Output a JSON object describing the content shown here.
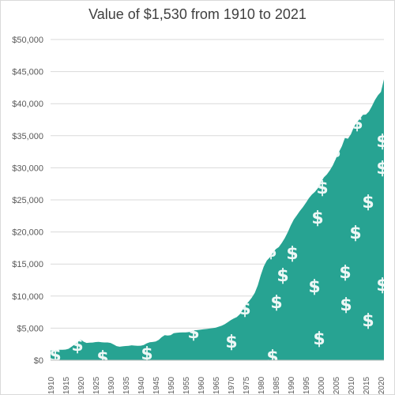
{
  "chart_data": {
    "type": "area",
    "title": "Value of $1,530 from 1910 to 2021",
    "xlabel": "",
    "ylabel": "",
    "xlim": [
      1910,
      2021
    ],
    "ylim": [
      0,
      50000
    ],
    "y_ticks": [
      0,
      5000,
      10000,
      15000,
      20000,
      25000,
      30000,
      35000,
      40000,
      45000,
      50000
    ],
    "y_tick_labels": [
      "$0",
      "$5,000",
      "$10,000",
      "$15,000",
      "$20,000",
      "$25,000",
      "$30,000",
      "$35,000",
      "$40,000",
      "$45,000",
      "$50,000"
    ],
    "x_ticks": [
      1910,
      1915,
      1920,
      1925,
      1930,
      1935,
      1940,
      1945,
      1950,
      1955,
      1960,
      1965,
      1970,
      1975,
      1980,
      1985,
      1990,
      1995,
      2000,
      2005,
      2010,
      2015,
      2020
    ],
    "x_tick_labels": [
      "1910",
      "1915",
      "1920",
      "1925",
      "1930",
      "1935",
      "1940",
      "1945",
      "1950",
      "1955",
      "1960",
      "1965",
      "1970",
      "1975",
      "1980",
      "1985",
      "1990",
      "1995",
      "2000",
      "2005",
      "2010",
      "2015",
      "2020"
    ],
    "gridlines": true,
    "fill_color": "#27a392",
    "decoration_icon": "dollar-sign-icon",
    "series": [
      {
        "x": [
          1910,
          1911,
          1912,
          1913,
          1914,
          1915,
          1916,
          1917,
          1918,
          1919,
          1920,
          1921,
          1922,
          1923,
          1924,
          1925,
          1926,
          1927,
          1928,
          1929,
          1930,
          1931,
          1932,
          1933,
          1934,
          1935,
          1936,
          1937,
          1938,
          1939,
          1940,
          1941,
          1942,
          1943,
          1944,
          1945,
          1946,
          1947,
          1948,
          1949,
          1950,
          1951,
          1952,
          1953,
          1954,
          1955,
          1956,
          1957,
          1958,
          1959,
          1960,
          1961,
          1962,
          1963,
          1964,
          1965,
          1966,
          1967,
          1968,
          1969,
          1970,
          1971,
          1972,
          1973,
          1974,
          1975,
          1976,
          1977,
          1978,
          1979,
          1980,
          1981,
          1982,
          1983,
          1984,
          1985,
          1986,
          1987,
          1988,
          1989,
          1990,
          1991,
          1992,
          1993,
          1994,
          1995,
          1996,
          1997,
          1998,
          1999,
          2000,
          2001,
          2002,
          2003,
          2004,
          2005,
          2006,
          2007,
          2008,
          2009,
          2010,
          2011,
          2012,
          2013,
          2014,
          2015,
          2016,
          2017,
          2018,
          2019,
          2020,
          2021
        ],
        "values": [
          1530,
          1530,
          1580,
          1620,
          1640,
          1660,
          1780,
          2100,
          2450,
          2800,
          3250,
          2900,
          2700,
          2750,
          2760,
          2830,
          2860,
          2810,
          2770,
          2770,
          2700,
          2460,
          2210,
          2100,
          2170,
          2220,
          2250,
          2330,
          2280,
          2250,
          2270,
          2380,
          2640,
          2800,
          2850,
          2920,
          3160,
          3610,
          3900,
          3860,
          3900,
          4210,
          4290,
          4320,
          4340,
          4330,
          4390,
          4540,
          4670,
          4700,
          4780,
          4830,
          4880,
          4940,
          5000,
          5090,
          5230,
          5400,
          5620,
          5920,
          6250,
          6520,
          6720,
          7150,
          7930,
          8660,
          9160,
          9750,
          10490,
          11680,
          13260,
          14630,
          15530,
          16020,
          16720,
          17310,
          17640,
          18290,
          19040,
          19960,
          21040,
          21930,
          22590,
          23260,
          23860,
          24530,
          25260,
          25840,
          26240,
          26820,
          27720,
          28510,
          28960,
          29620,
          30410,
          31440,
          32450,
          33380,
          34660,
          34530,
          35230,
          36350,
          37100,
          37640,
          38250,
          38300,
          38780,
          39610,
          40570,
          41310,
          41820,
          43790
        ]
      }
    ]
  }
}
